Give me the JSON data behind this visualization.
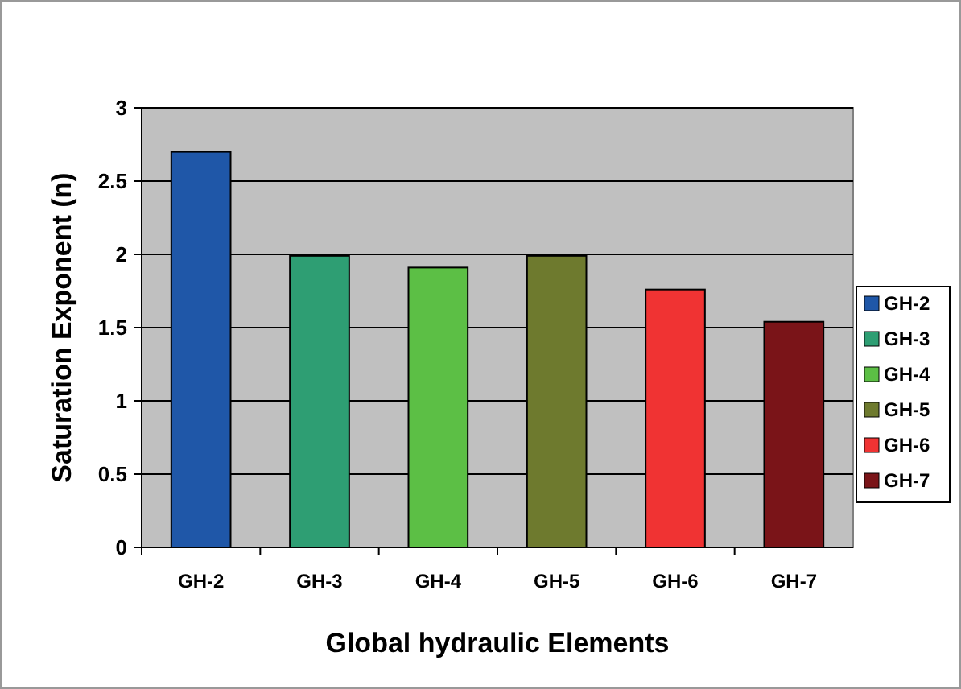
{
  "chart_data": {
    "type": "bar",
    "xlabel": "Global hydraulic Elements",
    "ylabel": "Saturation Exponent (n)",
    "categories": [
      "GH-2",
      "GH-3",
      "GH-4",
      "GH-5",
      "GH-6",
      "GH-7"
    ],
    "stacked": true,
    "series": [
      {
        "name": "GH-2",
        "color": "#1f57a8",
        "values": [
          2.7,
          null,
          null,
          null,
          null,
          null
        ]
      },
      {
        "name": "GH-3",
        "color": "#2e9e73",
        "values": [
          null,
          1.99,
          null,
          null,
          null,
          null
        ]
      },
      {
        "name": "GH-4",
        "color": "#5cbf45",
        "values": [
          null,
          null,
          1.91,
          null,
          null,
          null
        ]
      },
      {
        "name": "GH-5",
        "color": "#6e7a2e",
        "values": [
          null,
          null,
          null,
          1.99,
          null,
          null
        ]
      },
      {
        "name": "GH-6",
        "color": "#f03333",
        "values": [
          null,
          null,
          null,
          null,
          1.76,
          null
        ]
      },
      {
        "name": "GH-7",
        "color": "#7a1418",
        "values": [
          null,
          null,
          null,
          null,
          null,
          1.54
        ]
      }
    ],
    "ylim": [
      0,
      3
    ],
    "yticks": [
      0,
      0.5,
      1,
      1.5,
      2,
      2.5,
      3
    ],
    "grid": "y",
    "legend": "right"
  }
}
